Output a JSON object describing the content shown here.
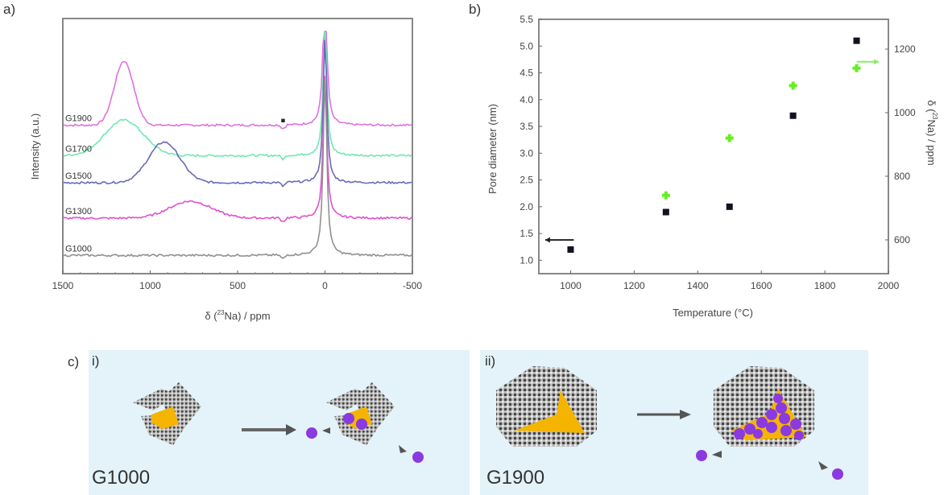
{
  "panel_labels": {
    "a": "a)",
    "b": "b)",
    "c": "c)",
    "c_i": "i)",
    "c_ii": "ii)"
  },
  "chart_data": [
    {
      "type": "line",
      "panel": "a",
      "title": "",
      "xlabel": "δ (²³Na) / ppm",
      "xlabel_parts": {
        "delta": "δ (",
        "sup": "23",
        "rest": "Na) / ppm"
      },
      "ylabel": "Intensity (a.u.)",
      "xlim": [
        1500,
        -500
      ],
      "x_ticks": [
        1500,
        1000,
        500,
        0,
        -500
      ],
      "x_tick_labels": [
        "1500",
        "1000",
        "500",
        "0",
        "-500"
      ],
      "grid": false,
      "annotation": "■",
      "annotation_x": 240,
      "series": [
        {
          "name": "G1900",
          "color": "#e070e0",
          "offset": 4.2,
          "peaks": [
            {
              "x": 1150,
              "h": 1.9,
              "w": 55
            },
            {
              "x": 0,
              "h": 4.6,
              "w": 12
            }
          ]
        },
        {
          "name": "G1700",
          "color": "#70e8b0",
          "offset": 3.3,
          "peaks": [
            {
              "x": 1150,
              "h": 1.05,
              "w": 110
            },
            {
              "x": 0,
              "h": 4.1,
              "w": 12
            }
          ]
        },
        {
          "name": "G1500",
          "color": "#6a6ab8",
          "offset": 2.5,
          "peaks": [
            {
              "x": 920,
              "h": 1.2,
              "w": 90
            },
            {
              "x": 0,
              "h": 4.4,
              "w": 12
            }
          ]
        },
        {
          "name": "G1300",
          "color": "#e050d0",
          "offset": 1.45,
          "peaks": [
            {
              "x": 770,
              "h": 0.5,
              "w": 120
            },
            {
              "x": 0,
              "h": 4.4,
              "w": 12
            }
          ]
        },
        {
          "name": "G1000",
          "color": "#909090",
          "offset": 0.35,
          "peaks": [
            {
              "x": 0,
              "h": 5.4,
              "w": 12
            }
          ]
        }
      ]
    },
    {
      "type": "scatter",
      "panel": "b",
      "xlabel": "Temperature (°C)",
      "ylabel": "Pore diameter (nm)",
      "y2label": "δ (²³Na) / ppm",
      "y2label_parts": {
        "delta": "δ (",
        "sup": "23",
        "rest": "Na) / ppm"
      },
      "xlim": [
        900,
        2000
      ],
      "ylim": [
        0.75,
        5.5
      ],
      "y2lim": [
        500,
        1300
      ],
      "x_ticks": [
        1000,
        1200,
        1400,
        1600,
        1800,
        2000
      ],
      "x_tick_labels": [
        "1000",
        "1200",
        "1400",
        "1600",
        "1800",
        "2000"
      ],
      "y_ticks": [
        1.0,
        1.5,
        2.0,
        2.5,
        3.0,
        3.5,
        4.0,
        4.5,
        5.0,
        5.5
      ],
      "y_tick_labels": [
        "1.0",
        "1.5",
        "2.0",
        "2.5",
        "3.0",
        "3.5",
        "4.0",
        "4.5",
        "5.0",
        "5.5"
      ],
      "y2_ticks": [
        600,
        800,
        1000,
        1200
      ],
      "y2_tick_labels": [
        "600",
        "800",
        "1000",
        "1200"
      ],
      "grid": false,
      "series": [
        {
          "name": "Pore diameter",
          "axis": "left",
          "marker": "square",
          "color": "#111122",
          "x": [
            1000,
            1300,
            1500,
            1700,
            1900
          ],
          "y": [
            1.2,
            1.9,
            2.0,
            3.7,
            5.1
          ]
        },
        {
          "name": "δ (23Na)",
          "axis": "right",
          "marker": "cross",
          "color": "#66ee22",
          "x": [
            1300,
            1500,
            1700,
            1900
          ],
          "y": [
            740,
            920,
            1085,
            1140
          ]
        }
      ],
      "arrows": [
        {
          "axis": "left",
          "y": 1.38,
          "x_from": 1010,
          "x_to": 920,
          "color": "#222222"
        },
        {
          "axis": "right",
          "y": 1160,
          "x_from": 1900,
          "x_to": 1970,
          "color": "#88ee66"
        }
      ]
    }
  ],
  "schematic": {
    "i": {
      "label": "G1000"
    },
    "ii": {
      "label": "G1900"
    },
    "colors": {
      "background": "#e3f3f9",
      "carbon": "#8a8a8a",
      "pore": "#f5b400",
      "sodium": "#8a3ae0",
      "arrow": "#555555"
    }
  }
}
